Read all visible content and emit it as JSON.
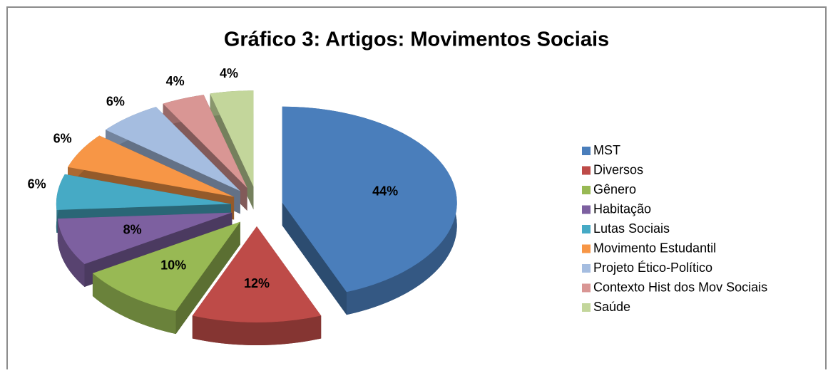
{
  "chart_data": {
    "type": "pie",
    "title": "Gráfico 3: Artigos: Movimentos Sociais",
    "categories": [
      "MST",
      "Diversos",
      "Gênero",
      "Habitação",
      "Lutas Sociais",
      "Movimento Estudantil",
      "Projeto Ético-Político",
      "Contexto Hist dos Mov Sociais",
      "Saúde"
    ],
    "values": [
      44,
      12,
      10,
      8,
      6,
      6,
      6,
      4,
      4
    ],
    "value_labels": [
      "44%",
      "12%",
      "10%",
      "8%",
      "6%",
      "6%",
      "6%",
      "4%",
      "4%"
    ],
    "colors": [
      "#4a7ebb",
      "#be4b48",
      "#98b954",
      "#7d60a0",
      "#46aac5",
      "#f79646",
      "#a5bde0",
      "#d99694",
      "#c3d69b"
    ],
    "legend": "right"
  }
}
